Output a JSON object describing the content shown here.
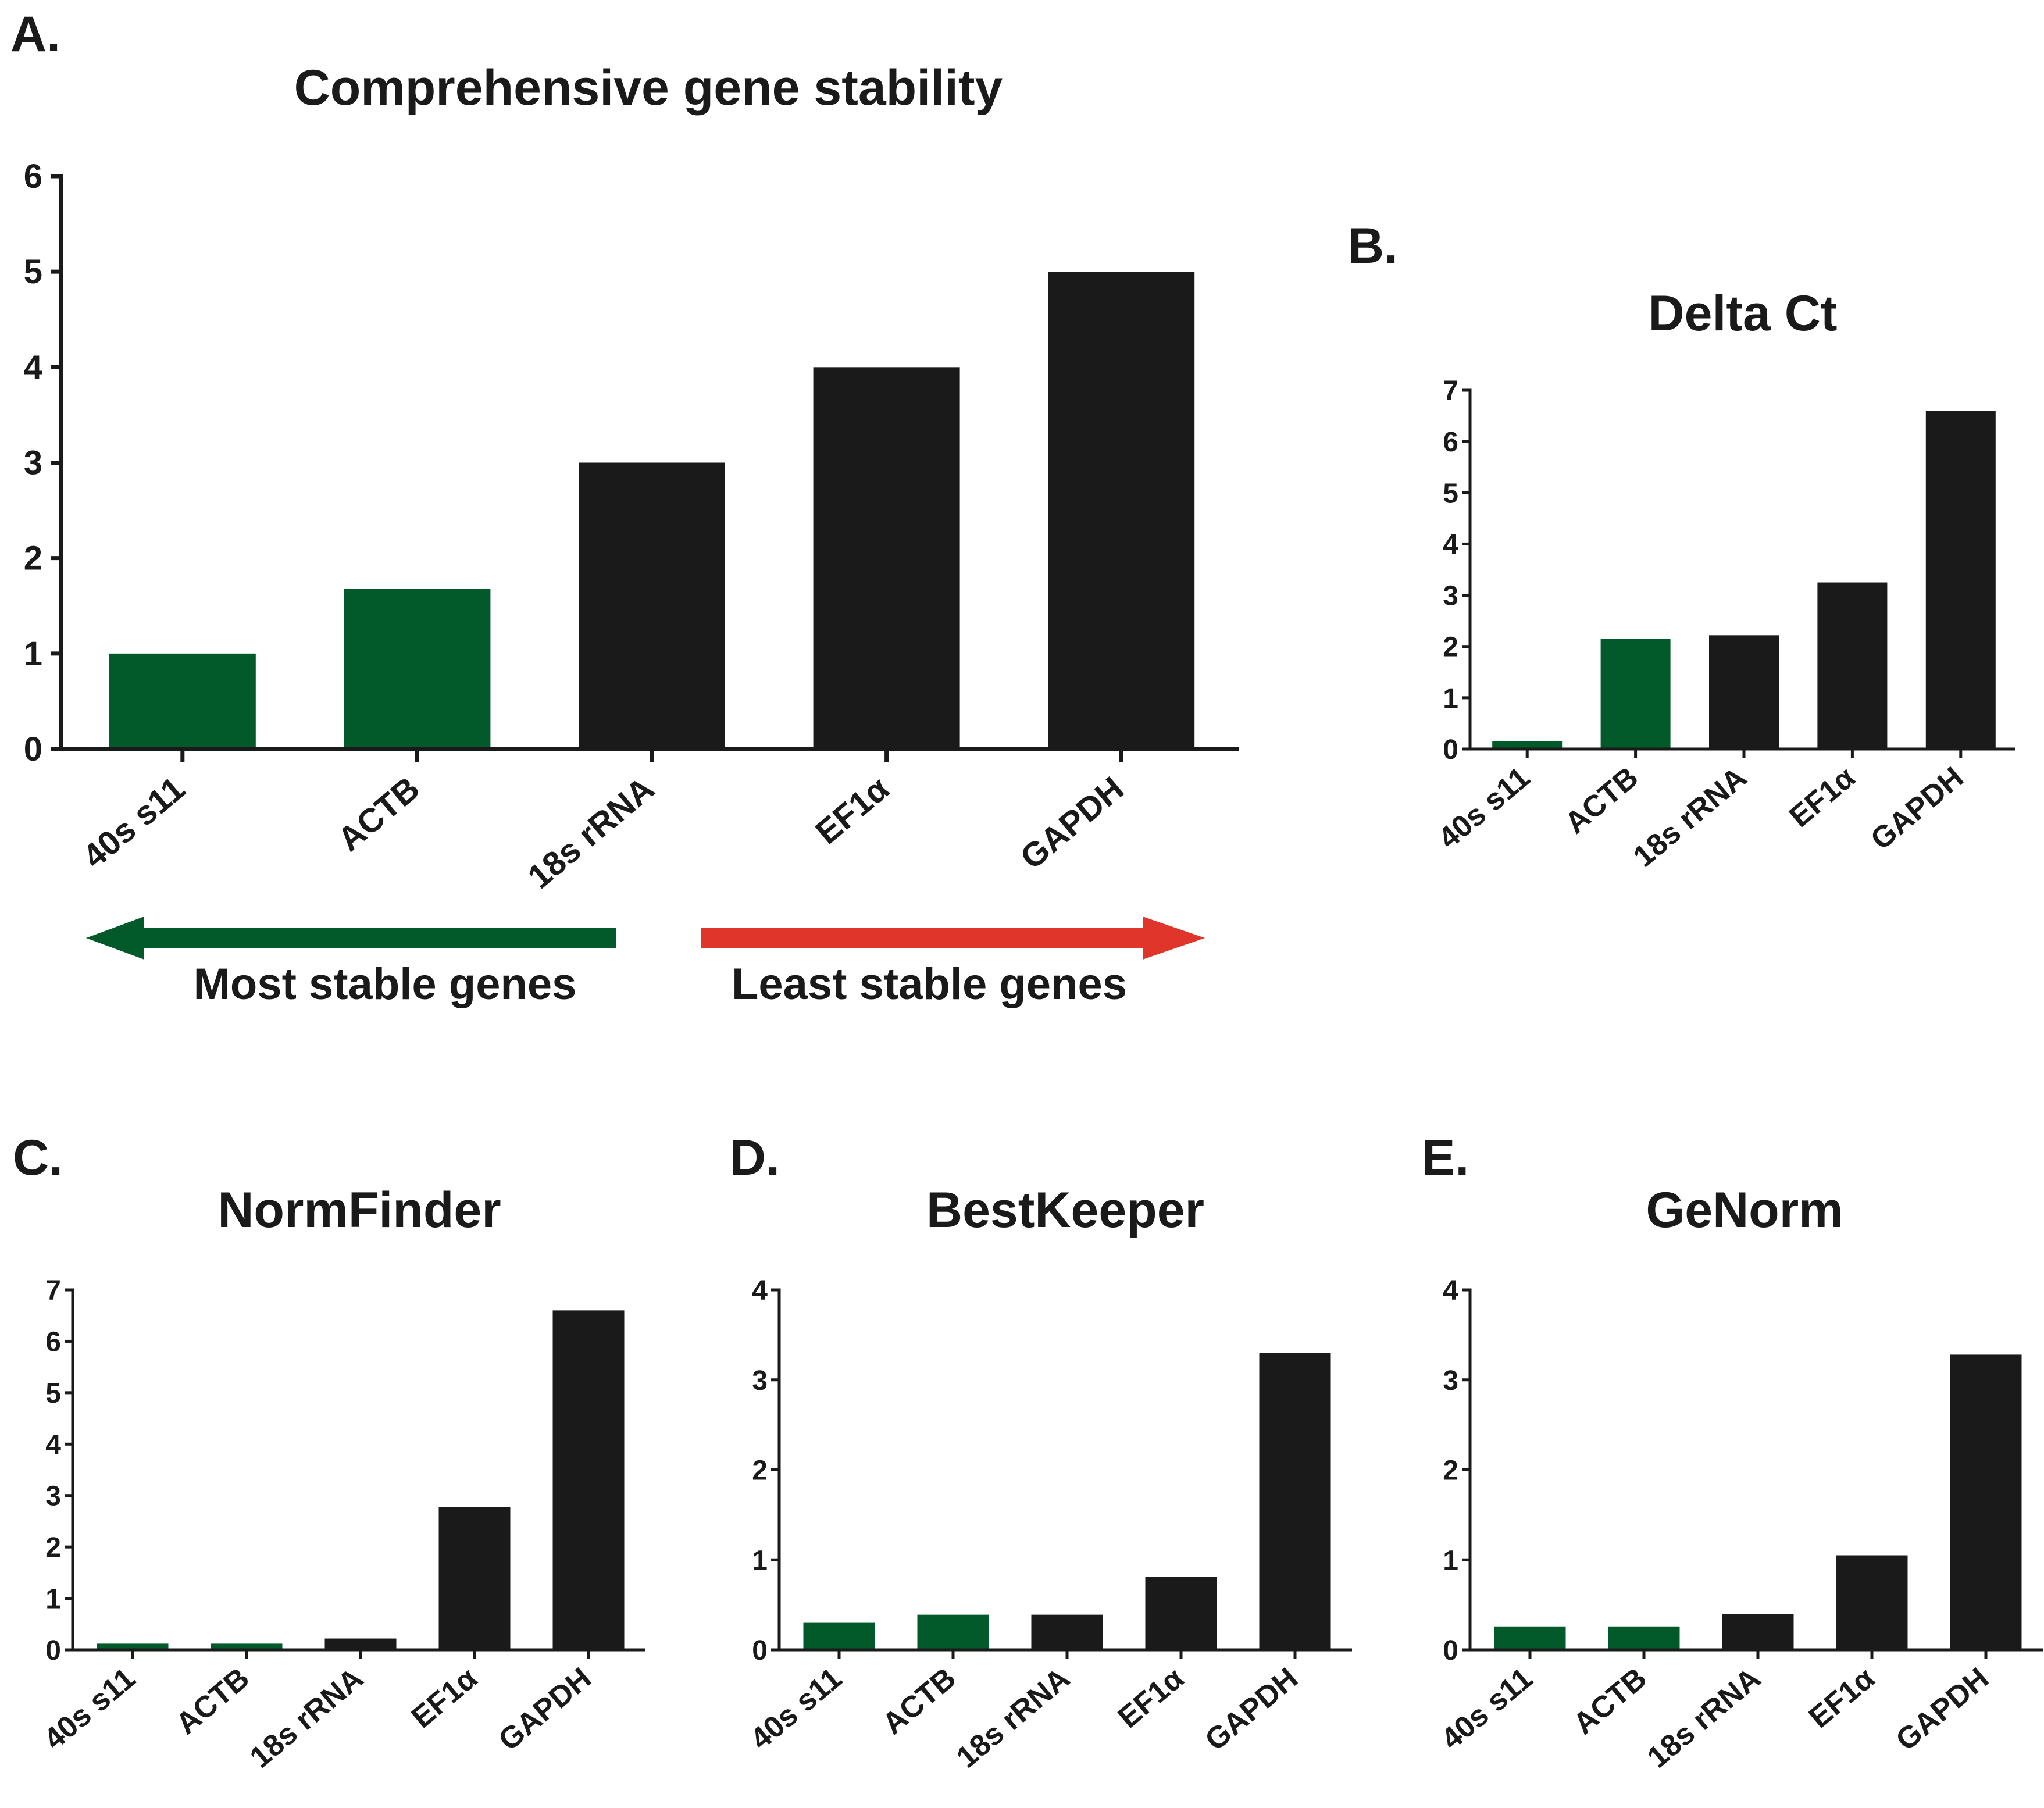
{
  "colors": {
    "stable": "#025a2b",
    "unstable": "#1a1a1a",
    "axis": "#1a1a1a",
    "arrow_left": "#025a2b",
    "arrow_right": "#e0352b"
  },
  "arrows": {
    "most_stable_label": "Most stable genes",
    "least_stable_label": "Least stable genes"
  },
  "chart_data": [
    {
      "id": "A",
      "type": "bar",
      "panel_label": "A.",
      "title": "Comprehensive gene stability",
      "categories": [
        "40s s11",
        "ACTB",
        "18s rRNA",
        "EF1α",
        "GAPDH"
      ],
      "values": [
        1.0,
        1.68,
        3.0,
        4.0,
        5.0
      ],
      "bar_colors": [
        "stable",
        "stable",
        "unstable",
        "unstable",
        "unstable"
      ],
      "ylim": [
        0,
        6
      ],
      "yticks": [
        0,
        1,
        2,
        3,
        4,
        5,
        6
      ],
      "xlabel": "",
      "ylabel": ""
    },
    {
      "id": "B",
      "type": "bar",
      "panel_label": "B.",
      "title": "Delta Ct",
      "categories": [
        "40s s11",
        "ACTB",
        "18s rRNA",
        "EF1α",
        "GAPDH"
      ],
      "values": [
        0.15,
        2.15,
        2.22,
        3.25,
        6.6
      ],
      "bar_colors": [
        "stable",
        "stable",
        "unstable",
        "unstable",
        "unstable"
      ],
      "ylim": [
        0,
        7
      ],
      "yticks": [
        0,
        1,
        2,
        3,
        4,
        5,
        6,
        7
      ],
      "xlabel": "",
      "ylabel": ""
    },
    {
      "id": "C",
      "type": "bar",
      "panel_label": "C.",
      "title": "NormFinder",
      "categories": [
        "40s s11",
        "ACTB",
        "18s rRNA",
        "EF1α",
        "GAPDH"
      ],
      "values": [
        0.12,
        0.12,
        0.22,
        2.78,
        6.6
      ],
      "bar_colors": [
        "stable",
        "stable",
        "unstable",
        "unstable",
        "unstable"
      ],
      "ylim": [
        0,
        7
      ],
      "yticks": [
        0,
        1,
        2,
        3,
        4,
        5,
        6,
        7
      ],
      "xlabel": "",
      "ylabel": ""
    },
    {
      "id": "D",
      "type": "bar",
      "panel_label": "D.",
      "title": "BestKeeper",
      "categories": [
        "40s s11",
        "ACTB",
        "18s rRNA",
        "EF1α",
        "GAPDH"
      ],
      "values": [
        0.3,
        0.39,
        0.39,
        0.81,
        3.3
      ],
      "bar_colors": [
        "stable",
        "stable",
        "unstable",
        "unstable",
        "unstable"
      ],
      "ylim": [
        0,
        4
      ],
      "yticks": [
        0,
        1,
        2,
        3,
        4
      ],
      "xlabel": "",
      "ylabel": ""
    },
    {
      "id": "E",
      "type": "bar",
      "panel_label": "E.",
      "title": "GeNorm",
      "categories": [
        "40s s11",
        "ACTB",
        "18s rRNA",
        "EF1α",
        "GAPDH"
      ],
      "values": [
        0.26,
        0.26,
        0.4,
        1.05,
        3.28
      ],
      "bar_colors": [
        "stable",
        "stable",
        "unstable",
        "unstable",
        "unstable"
      ],
      "ylim": [
        0,
        4
      ],
      "yticks": [
        0,
        1,
        2,
        3,
        4
      ],
      "xlabel": "",
      "ylabel": ""
    }
  ]
}
